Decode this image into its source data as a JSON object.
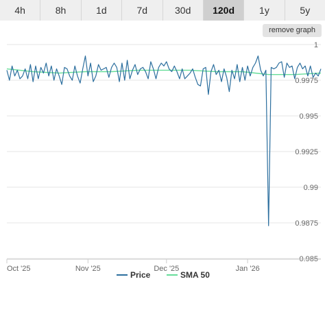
{
  "range_tabs": [
    "4h",
    "8h",
    "1d",
    "7d",
    "30d",
    "120d",
    "1y",
    "5y"
  ],
  "active_tab": "120d",
  "remove_graph_label": "remove graph",
  "colors": {
    "price": "#2b6e9e",
    "sma": "#66dd99",
    "grid": "#e6e6e6",
    "tab_active": "#cfcfcf",
    "tab_bg": "#efefef"
  },
  "chart_data": {
    "type": "line",
    "ylim": [
      0.985,
      1.0
    ],
    "yticks": [
      {
        "value": 1.0,
        "label": "1"
      },
      {
        "value": 0.9975,
        "label": "0.9975"
      },
      {
        "value": 0.995,
        "label": "0.995"
      },
      {
        "value": 0.9925,
        "label": "0.9925"
      },
      {
        "value": 0.99,
        "label": "0.99"
      },
      {
        "value": 0.9875,
        "label": "0.9875"
      },
      {
        "value": 0.985,
        "label": "0.985"
      }
    ],
    "xlim": [
      0,
      120
    ],
    "xticks": [
      {
        "value": 0,
        "label": "Oct '25"
      },
      {
        "value": 31,
        "label": "Nov '25"
      },
      {
        "value": 61,
        "label": "Dec '25"
      },
      {
        "value": 92,
        "label": "Jan '26"
      }
    ],
    "legend_placement": "bottom",
    "grid": true,
    "series": [
      {
        "name": "Price",
        "x": [
          0,
          1,
          2,
          3,
          4,
          5,
          6,
          7,
          8,
          9,
          10,
          11,
          12,
          13,
          14,
          15,
          16,
          17,
          18,
          19,
          20,
          21,
          22,
          23,
          24,
          25,
          26,
          27,
          28,
          29,
          30,
          31,
          32,
          33,
          34,
          35,
          36,
          37,
          38,
          39,
          40,
          41,
          42,
          43,
          44,
          45,
          46,
          47,
          48,
          49,
          50,
          51,
          52,
          53,
          54,
          55,
          56,
          57,
          58,
          59,
          60,
          61,
          62,
          63,
          64,
          65,
          66,
          67,
          68,
          69,
          70,
          71,
          72,
          73,
          74,
          75,
          76,
          77,
          78,
          79,
          80,
          81,
          82,
          83,
          84,
          85,
          86,
          87,
          88,
          89,
          90,
          91,
          92,
          93,
          94,
          95,
          96,
          97,
          98,
          99,
          100,
          101,
          102,
          103,
          104,
          105,
          106,
          107,
          108,
          109,
          110,
          111,
          112,
          113,
          114,
          115,
          116,
          117,
          118,
          119,
          120
        ],
        "values": [
          0.9982,
          0.9975,
          0.9985,
          0.9978,
          0.9982,
          0.9976,
          0.9978,
          0.9983,
          0.9976,
          0.9986,
          0.9974,
          0.9985,
          0.9976,
          0.9984,
          0.998,
          0.9987,
          0.9978,
          0.9985,
          0.9975,
          0.9983,
          0.9978,
          0.9972,
          0.9984,
          0.9983,
          0.9978,
          0.9975,
          0.9985,
          0.9978,
          0.9973,
          0.9983,
          0.9992,
          0.9978,
          0.9987,
          0.9974,
          0.9978,
          0.9986,
          0.9982,
          0.9983,
          0.9984,
          0.9977,
          0.9984,
          0.9987,
          0.9984,
          0.9974,
          0.9987,
          0.9975,
          0.9989,
          0.9976,
          0.9982,
          0.9986,
          0.9979,
          0.9983,
          0.9984,
          0.9981,
          0.9976,
          0.9988,
          0.9983,
          0.9976,
          0.9984,
          0.9987,
          0.9985,
          0.9988,
          0.9983,
          0.9981,
          0.9985,
          0.9981,
          0.9976,
          0.9983,
          0.9976,
          0.9978,
          0.998,
          0.9983,
          0.9977,
          0.9972,
          0.9971,
          0.9983,
          0.9984,
          0.9965,
          0.9981,
          0.9986,
          0.9979,
          0.9982,
          0.9974,
          0.9983,
          0.9977,
          0.9967,
          0.9982,
          0.9976,
          0.9986,
          0.9974,
          0.9984,
          0.9975,
          0.9985,
          0.9978,
          0.9984,
          0.9987,
          0.9992,
          0.9982,
          0.9978,
          0.9982,
          0.9873,
          0.9984,
          0.9983,
          0.9984,
          0.9987,
          0.9988,
          0.9977,
          0.9987,
          0.9984,
          0.9985,
          0.9976,
          0.9984,
          0.9987,
          0.9983,
          0.9985,
          0.9978,
          0.9985,
          0.9977,
          0.998,
          0.9978,
          0.9983
        ]
      },
      {
        "name": "SMA 50",
        "x": [
          0,
          10,
          20,
          30,
          40,
          50,
          60,
          70,
          80,
          90,
          100,
          110,
          120
        ],
        "values": [
          0.9983,
          0.9981,
          0.998,
          0.9981,
          0.9981,
          0.9982,
          0.9982,
          0.9982,
          0.9981,
          0.9981,
          0.9979,
          0.9979,
          0.998
        ]
      }
    ]
  }
}
